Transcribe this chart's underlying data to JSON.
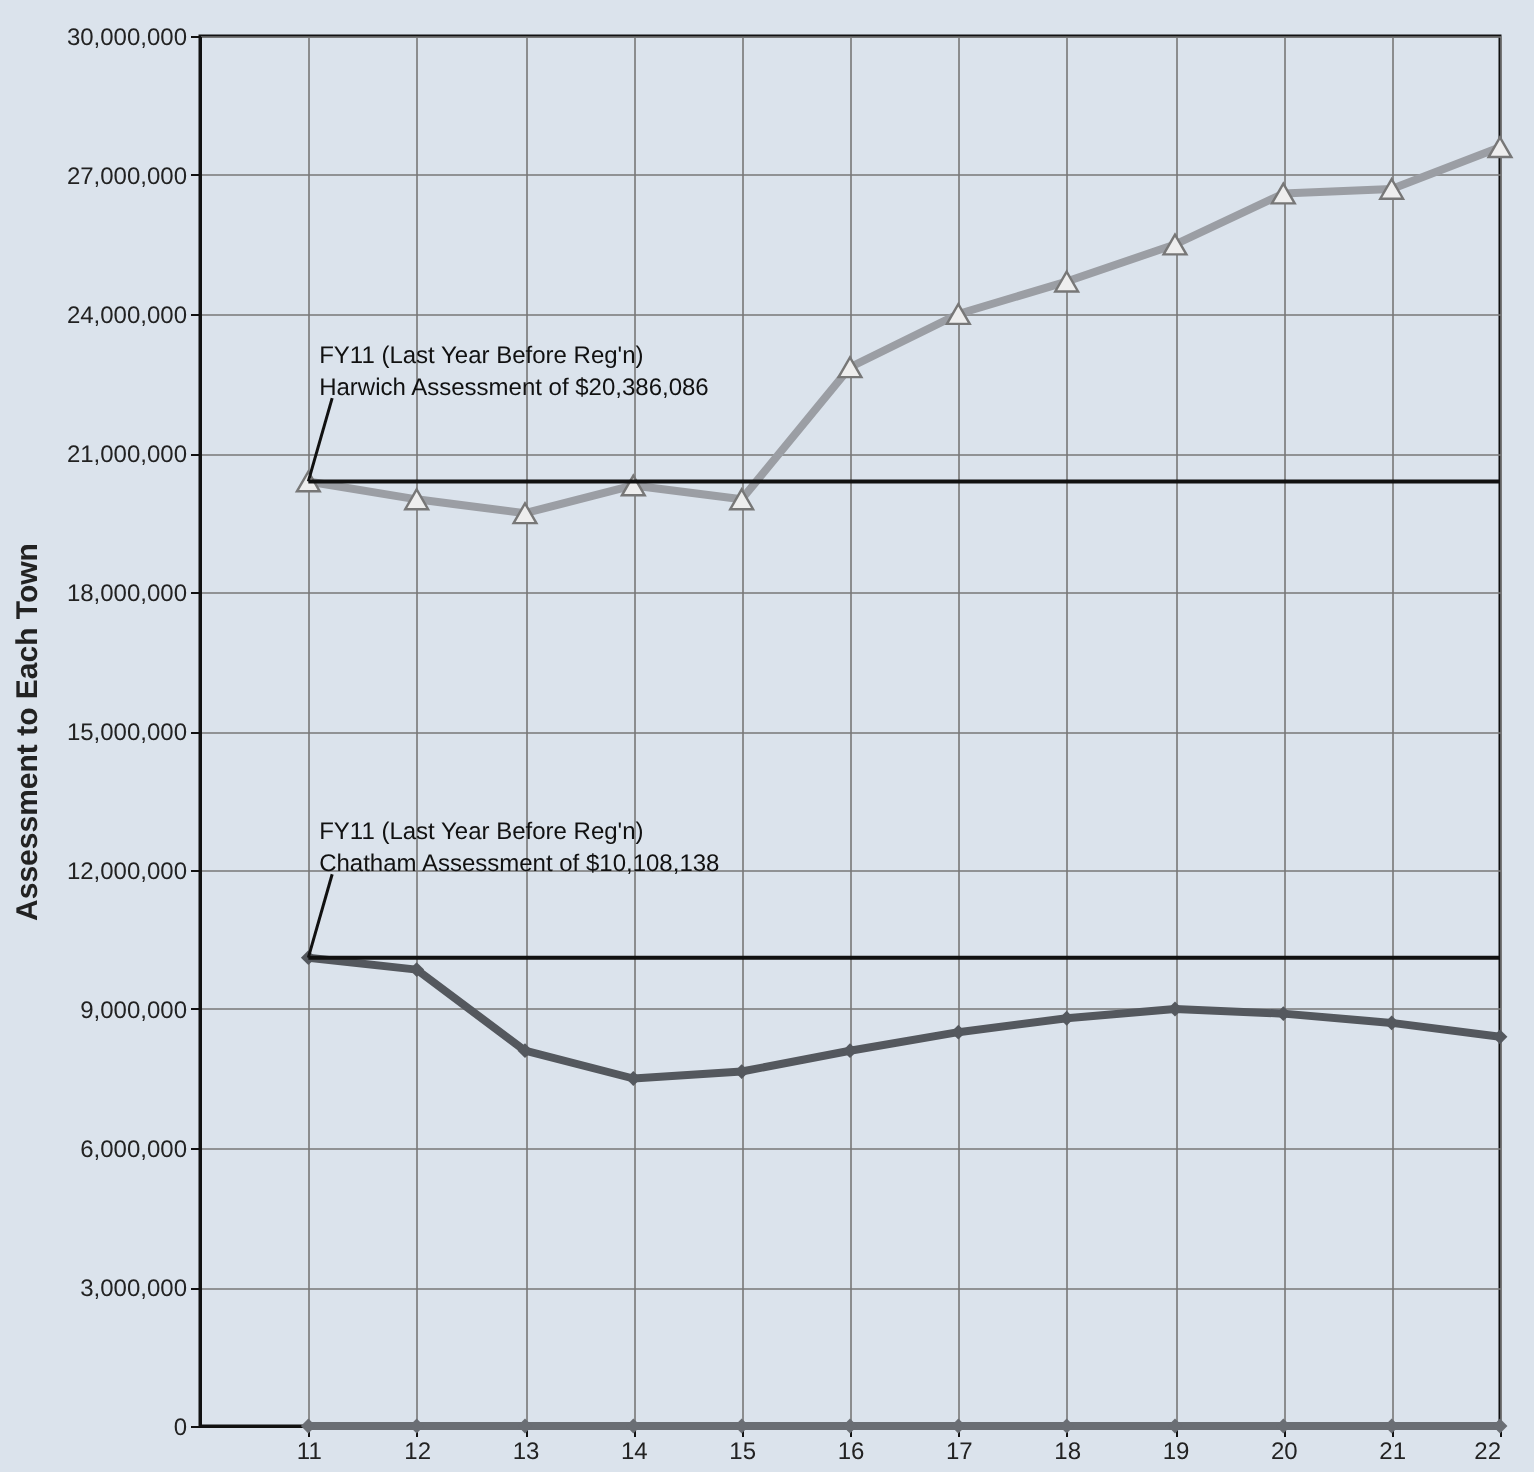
{
  "chart_data": {
    "type": "line",
    "ylabel": "Assessment to Each Town",
    "x": [
      11,
      12,
      13,
      14,
      15,
      16,
      17,
      18,
      19,
      20,
      21,
      22
    ],
    "xlim": [
      10,
      22
    ],
    "xticks": [
      11,
      12,
      13,
      14,
      15,
      16,
      17,
      18,
      19,
      20,
      21,
      22
    ],
    "ylim": [
      0,
      30000000
    ],
    "yticks": [
      0,
      {
        "value": 3000000,
        "label": "3,000,000"
      },
      {
        "value": 6000000,
        "label": "6,000,000"
      },
      {
        "value": 9000000,
        "label": "9,000,000"
      },
      {
        "value": 12000000,
        "label": "12,000,000"
      },
      {
        "value": 15000000,
        "label": "15,000,000"
      },
      {
        "value": 18000000,
        "label": "18,000,000"
      },
      {
        "value": 21000000,
        "label": "21,000,000"
      },
      {
        "value": 24000000,
        "label": "24,000,000"
      },
      {
        "value": 27000000,
        "label": "27,000,000"
      },
      {
        "value": 30000000,
        "label": "30,000,000"
      }
    ],
    "grid": true,
    "series": [
      {
        "color": "#9b9ea4",
        "marker": "triangle",
        "values": [
          20386086,
          20000000,
          19700000,
          20300000,
          20000000,
          22850000,
          24000000,
          24700000,
          25500000,
          26600000,
          26700000,
          27600000
        ]
      },
      {
        "color": "#54585e",
        "marker": "diamond",
        "values": [
          10108138,
          9850000,
          8100000,
          7500000,
          7650000,
          8100000,
          8500000,
          8800000,
          9000000,
          8900000,
          8700000,
          8400000
        ]
      },
      {
        "color": "#6a6e74",
        "marker": "diamond",
        "values": [
          0,
          0,
          0,
          0,
          0,
          0,
          0,
          0,
          0,
          0,
          0,
          0
        ]
      }
    ],
    "ref_lines": [
      {
        "axis": "y",
        "value": 20386086,
        "color": "#111111"
      },
      {
        "axis": "y",
        "value": 10108138,
        "color": "#111111"
      }
    ],
    "annotations": [
      {
        "text": "FY11 (Last Year Before Reg'n)\nHarwich Assessment of $20,386,086",
        "x": 11,
        "y": 20386086
      },
      {
        "text": "FY11 (Last Year Before Reg'n)\nChatham Assessment of $10,108,138",
        "x": 11,
        "y": 10108138
      }
    ]
  }
}
